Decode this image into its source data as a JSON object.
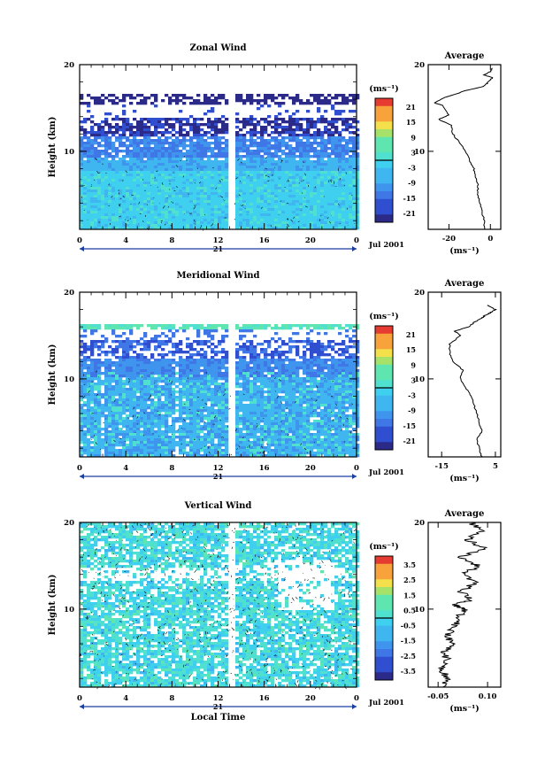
{
  "figure": {
    "x_label": "Local Time",
    "date_label": "Jul 2001",
    "day_label": "21",
    "unit_label": "(ms⁻¹)"
  },
  "chart_data": [
    {
      "type": "heatmap",
      "title": "Zonal Wind",
      "ylabel": "Height (km)",
      "xlabel": "",
      "xlim": [
        0,
        24
      ],
      "ylim": [
        1,
        20
      ],
      "x_ticks": [
        "0",
        "4",
        "8",
        "12",
        "16",
        "20",
        "0"
      ],
      "y_ticks": [
        "10",
        "20"
      ],
      "colorbar": {
        "ticks": [
          "21",
          "15",
          "9",
          "3",
          "-3",
          "-9",
          "-15",
          "-21"
        ],
        "range": [
          -24,
          24
        ]
      },
      "profile": {
        "title": "Average",
        "x_ticks": [
          "-20",
          "0"
        ],
        "xlim": [
          -30,
          5
        ],
        "xlabel": "(ms⁻¹)",
        "points": [
          [
            -3,
            1
          ],
          [
            -3,
            2
          ],
          [
            -4,
            3
          ],
          [
            -5,
            4
          ],
          [
            -6,
            5
          ],
          [
            -6,
            6
          ],
          [
            -7,
            7
          ],
          [
            -8,
            8
          ],
          [
            -10,
            9
          ],
          [
            -12,
            10
          ],
          [
            -15,
            11
          ],
          [
            -18,
            12
          ],
          [
            -19,
            13
          ],
          [
            -25,
            13.7
          ],
          [
            -20,
            14.2
          ],
          [
            -23,
            15.3
          ],
          [
            -27,
            15.6
          ],
          [
            -22,
            16.2
          ],
          [
            -12,
            17
          ],
          [
            -3,
            17.5
          ],
          [
            -1,
            18
          ],
          [
            1,
            18.5
          ],
          [
            -3,
            18.8
          ],
          [
            0,
            19.2
          ],
          [
            1,
            19.6
          ]
        ]
      }
    },
    {
      "type": "heatmap",
      "title": "Meridional Wind",
      "ylabel": "Height (km)",
      "xlabel": "",
      "xlim": [
        0,
        24
      ],
      "ylim": [
        1,
        20
      ],
      "x_ticks": [
        "0",
        "4",
        "8",
        "12",
        "16",
        "20",
        "0"
      ],
      "y_ticks": [
        "10",
        "20"
      ],
      "colorbar": {
        "ticks": [
          "21",
          "15",
          "9",
          "3",
          "-3",
          "-9",
          "-15",
          "-21"
        ],
        "range": [
          -24,
          24
        ]
      },
      "profile": {
        "title": "Average",
        "x_ticks": [
          "-15",
          "5"
        ],
        "xlim": [
          -20,
          7
        ],
        "xlabel": "(ms⁻¹)",
        "points": [
          [
            0,
            1
          ],
          [
            -1,
            2
          ],
          [
            -2,
            3
          ],
          [
            0,
            4
          ],
          [
            -1,
            5
          ],
          [
            -2,
            6
          ],
          [
            -3,
            7
          ],
          [
            -4,
            8
          ],
          [
            -6,
            9
          ],
          [
            -8,
            10
          ],
          [
            -7,
            11
          ],
          [
            -11,
            12
          ],
          [
            -12,
            13
          ],
          [
            -12,
            14
          ],
          [
            -8,
            15
          ],
          [
            -10,
            15.5
          ],
          [
            -5,
            16
          ],
          [
            -3,
            16.5
          ],
          [
            0,
            17
          ],
          [
            1,
            17.3
          ],
          [
            3,
            17.6
          ],
          [
            5,
            18
          ],
          [
            2,
            18.5
          ]
        ]
      }
    },
    {
      "type": "heatmap",
      "title": "Vertical Wind",
      "ylabel": "Height (km)",
      "xlabel": "Local Time",
      "xlim": [
        0,
        24
      ],
      "ylim": [
        1,
        20
      ],
      "x_ticks": [
        "0",
        "4",
        "8",
        "12",
        "16",
        "20",
        "0"
      ],
      "y_ticks": [
        "10",
        "20"
      ],
      "colorbar": {
        "ticks": [
          "3.5",
          "2.5",
          "1.5",
          "0.5",
          "-0.5",
          "-1.5",
          "-2.5",
          "-3.5"
        ],
        "range": [
          -4,
          4
        ]
      },
      "profile": {
        "title": "Average",
        "x_ticks": [
          "-0.05",
          "0.10"
        ],
        "xlim": [
          -0.08,
          0.14
        ],
        "xlabel": "(ms⁻¹)",
        "points": [
          [
            -0.03,
            1
          ],
          [
            -0.02,
            2
          ],
          [
            -0.04,
            3
          ],
          [
            -0.02,
            4
          ],
          [
            -0.03,
            5
          ],
          [
            -0.01,
            6
          ],
          [
            -0.02,
            7
          ],
          [
            0.0,
            8
          ],
          [
            0.01,
            9
          ],
          [
            0.03,
            10
          ],
          [
            0.0,
            10.5
          ],
          [
            0.05,
            11
          ],
          [
            0.02,
            12
          ],
          [
            0.06,
            13
          ],
          [
            0.03,
            14
          ],
          [
            0.07,
            15
          ],
          [
            0.02,
            16
          ],
          [
            0.09,
            17
          ],
          [
            0.04,
            18
          ],
          [
            0.08,
            19
          ],
          [
            0.05,
            20
          ]
        ]
      }
    }
  ]
}
